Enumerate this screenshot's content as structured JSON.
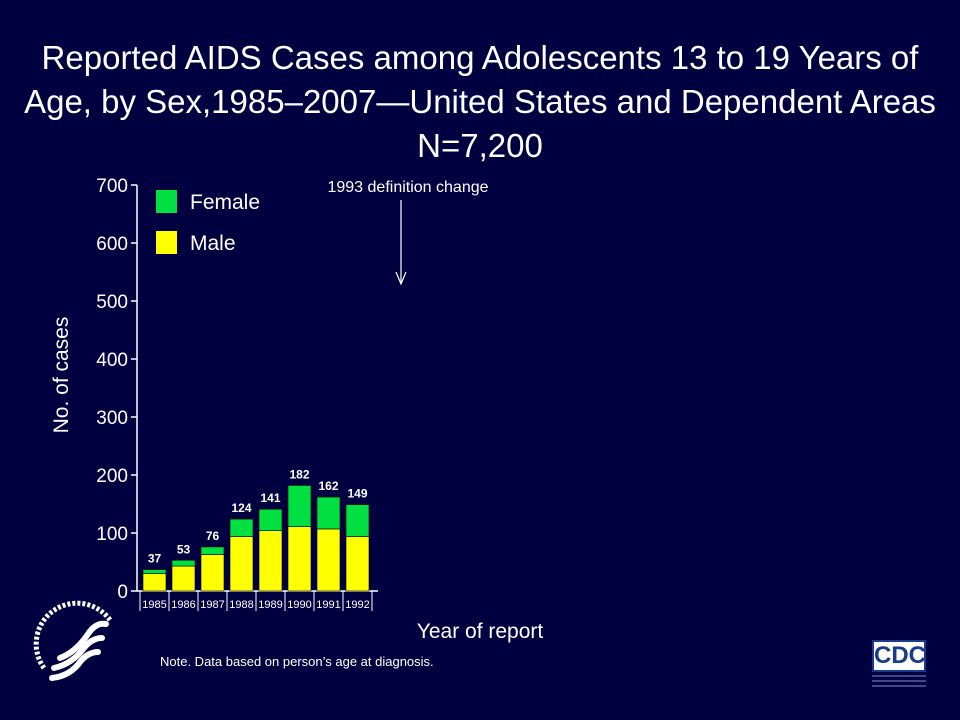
{
  "slide": {
    "title_lines": [
      "Reported AIDS Cases among Adolescents 13 to 19 Years of",
      "Age, by Sex,1985–2007—United States and Dependent Areas",
      "N=7,200"
    ],
    "note": "Note. Data based on person’s age at diagnosis.",
    "logos": {
      "hhs": "hhs-eagle-seal-icon",
      "cdc_text": "CDC"
    }
  },
  "chart_data": {
    "type": "bar",
    "stacked": true,
    "categories": [
      "1985",
      "1986",
      "1987",
      "1988",
      "1989",
      "1990",
      "1991",
      "1992"
    ],
    "series": [
      {
        "name": "Male",
        "color": "#ffff00",
        "values": [
          30,
          43,
          63,
          94,
          104,
          111,
          107,
          94
        ]
      },
      {
        "name": "Female",
        "color": "#00e040",
        "values": [
          7,
          10,
          13,
          30,
          37,
          71,
          55,
          55
        ]
      }
    ],
    "totals": [
      37,
      53,
      76,
      124,
      141,
      182,
      162,
      149
    ],
    "title": "",
    "xlabel": "Year of report",
    "ylabel": "No. of cases",
    "ylim": [
      0,
      700
    ],
    "yticks": [
      0,
      100,
      200,
      300,
      400,
      500,
      600,
      700
    ],
    "legend_position": "top-left",
    "grid": false,
    "annotations": [
      {
        "text": "1993 definition change",
        "kind": "arrow-down"
      }
    ]
  }
}
